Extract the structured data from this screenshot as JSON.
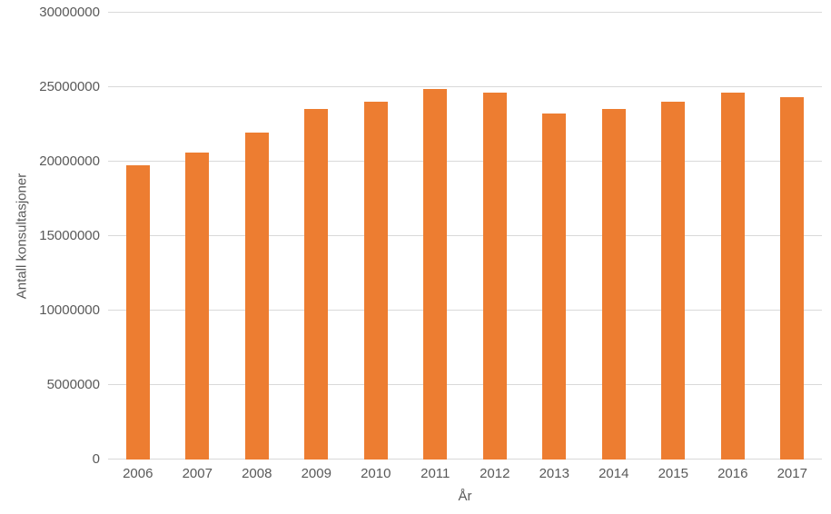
{
  "chart_data": {
    "type": "bar",
    "title": "",
    "xlabel": "År",
    "ylabel": "Antall konsultasjoner",
    "categories": [
      "2006",
      "2007",
      "2008",
      "2009",
      "2010",
      "2011",
      "2012",
      "2013",
      "2014",
      "2015",
      "2016",
      "2017"
    ],
    "values": [
      19750000,
      20600000,
      21950000,
      23550000,
      24000000,
      24900000,
      24650000,
      23250000,
      23550000,
      24050000,
      24650000,
      24300000
    ],
    "ylim": [
      0,
      30000000
    ],
    "yticks": [
      0,
      5000000,
      10000000,
      15000000,
      20000000,
      25000000,
      30000000
    ],
    "ytick_labels": [
      "0",
      "5000000",
      "10000000",
      "15000000",
      "20000000",
      "25000000",
      "30000000"
    ],
    "grid": true,
    "legend": false,
    "colors": {
      "bar": "#ED7D31",
      "gridline": "#D9D9D9",
      "text": "#595959",
      "background": "#FFFFFF"
    }
  }
}
